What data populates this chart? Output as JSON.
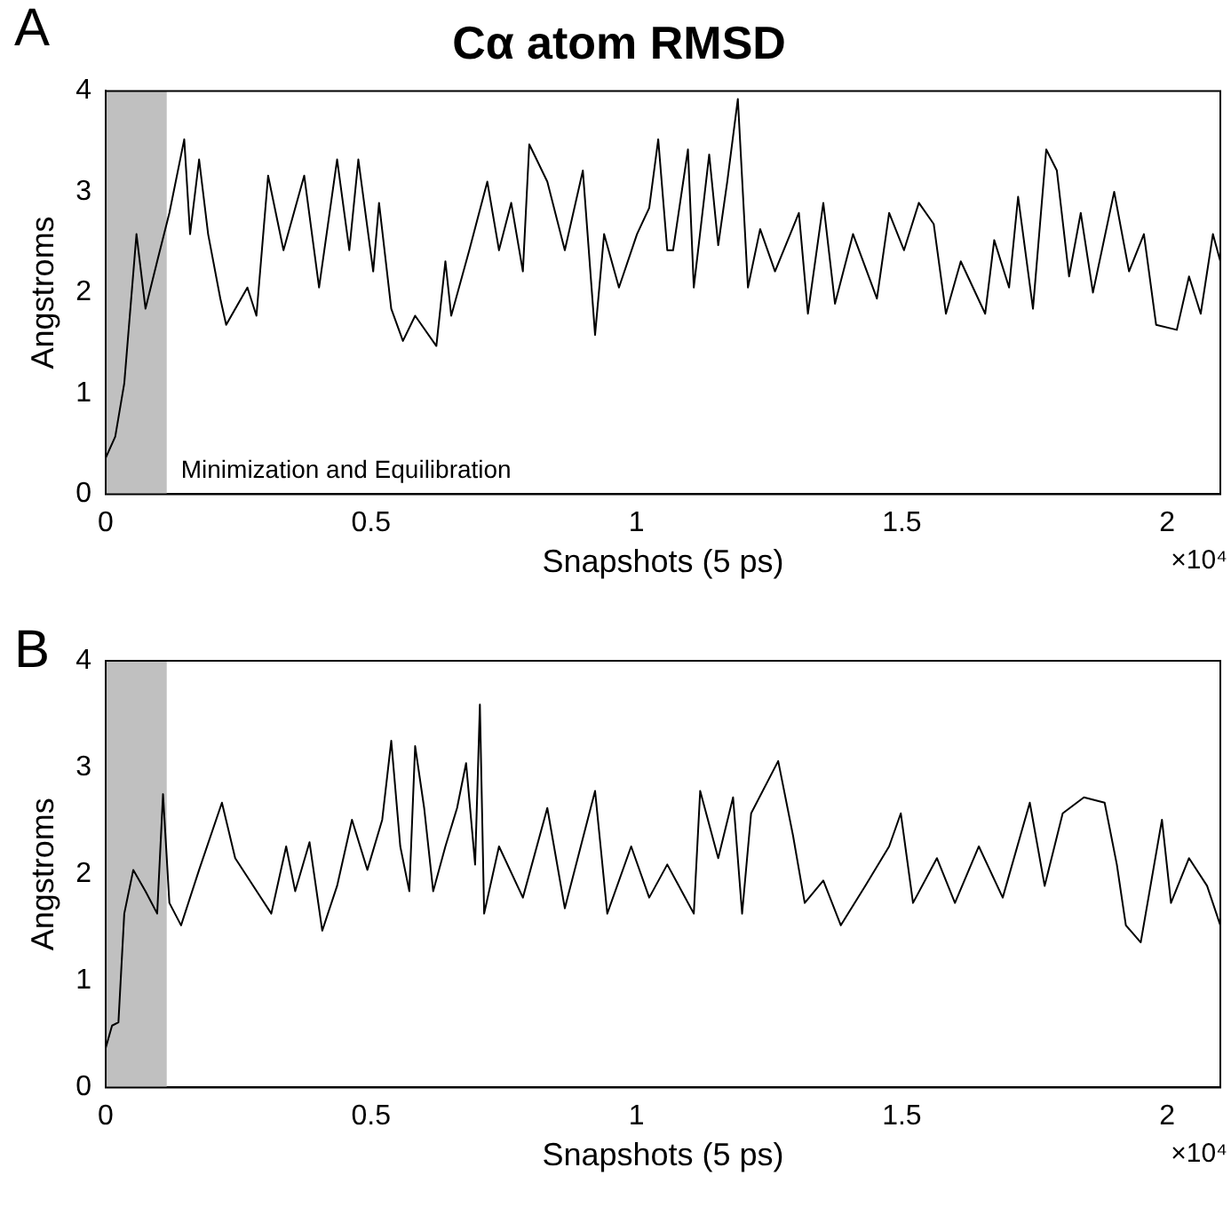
{
  "chart_data": [
    {
      "type": "line",
      "title": "Cα atom RMSD",
      "xlabel": "Snapshots (5 ps)",
      "ylabel": "Angstroms",
      "annotations": [
        "A",
        "×10⁴"
      ],
      "xlim": [
        0,
        2.1
      ],
      "ylim": [
        0,
        4
      ],
      "xticks": [
        0,
        0.5,
        1,
        1.5,
        2
      ],
      "yticks": [
        0,
        1,
        2,
        3,
        4
      ],
      "bands": [
        {
          "axis": "x",
          "from": 0,
          "to": 0.115,
          "label": "Minimization and Equilibration",
          "color": "#c0c0c0"
        }
      ],
      "x": [
        0,
        0.018,
        0.035,
        0.058,
        0.075,
        0.097,
        0.12,
        0.148,
        0.159,
        0.176,
        0.193,
        0.216,
        0.227,
        0.267,
        0.284,
        0.306,
        0.335,
        0.374,
        0.402,
        0.436,
        0.459,
        0.476,
        0.504,
        0.515,
        0.538,
        0.56,
        0.583,
        0.623,
        0.64,
        0.651,
        0.685,
        0.719,
        0.741,
        0.764,
        0.786,
        0.798,
        0.832,
        0.865,
        0.899,
        0.922,
        0.939,
        0.967,
        1.001,
        1.024,
        1.041,
        1.058,
        1.069,
        1.097,
        1.108,
        1.137,
        1.154,
        1.171,
        1.191,
        1.21,
        1.233,
        1.261,
        1.306,
        1.323,
        1.352,
        1.374,
        1.408,
        1.453,
        1.476,
        1.504,
        1.532,
        1.56,
        1.583,
        1.611,
        1.657,
        1.674,
        1.702,
        1.719,
        1.747,
        1.772,
        1.792,
        1.815,
        1.837,
        1.86,
        1.9,
        1.928,
        1.956,
        1.979,
        2.018,
        2.041,
        2.063,
        2.086,
        2.1
      ],
      "series": [
        {
          "color": "#000000",
          "values": [
            0.36,
            0.57,
            1.1,
            2.58,
            1.84,
            2.31,
            2.79,
            3.52,
            2.58,
            3.32,
            2.58,
            1.94,
            1.68,
            2.05,
            1.77,
            3.16,
            2.42,
            3.16,
            2.05,
            3.32,
            2.42,
            3.32,
            2.21,
            2.89,
            1.84,
            1.52,
            1.77,
            1.47,
            2.31,
            1.77,
            2.42,
            3.1,
            2.42,
            2.89,
            2.21,
            3.47,
            3.1,
            2.42,
            3.21,
            1.58,
            2.58,
            2.05,
            2.58,
            2.84,
            3.52,
            2.42,
            2.42,
            3.42,
            2.05,
            3.37,
            2.47,
            3.1,
            3.92,
            2.05,
            2.63,
            2.21,
            2.79,
            1.79,
            2.89,
            1.89,
            2.58,
            1.94,
            2.79,
            2.42,
            2.89,
            2.68,
            1.79,
            2.31,
            1.79,
            2.52,
            2.05,
            2.95,
            1.84,
            3.42,
            3.21,
            2.16,
            2.79,
            2.0,
            3.0,
            2.21,
            2.58,
            1.68,
            1.63,
            2.16,
            1.79,
            2.58,
            2.31
          ]
        }
      ]
    },
    {
      "type": "line",
      "xlabel": "Snapshots (5 ps)",
      "ylabel": "Angstroms",
      "annotations": [
        "B",
        "×10⁴"
      ],
      "xlim": [
        0,
        2.1
      ],
      "ylim": [
        0,
        4
      ],
      "xticks": [
        0,
        0.5,
        1,
        1.5,
        2
      ],
      "yticks": [
        0,
        1,
        2,
        3,
        4
      ],
      "bands": [
        {
          "axis": "x",
          "from": 0,
          "to": 0.115,
          "color": "#c0c0c0"
        }
      ],
      "x": [
        0,
        0.012,
        0.024,
        0.035,
        0.052,
        0.075,
        0.097,
        0.108,
        0.12,
        0.142,
        0.176,
        0.219,
        0.244,
        0.312,
        0.34,
        0.357,
        0.384,
        0.408,
        0.436,
        0.464,
        0.493,
        0.521,
        0.538,
        0.555,
        0.572,
        0.583,
        0.6,
        0.617,
        0.64,
        0.662,
        0.679,
        0.696,
        0.705,
        0.713,
        0.741,
        0.786,
        0.832,
        0.865,
        0.922,
        0.945,
        0.99,
        1.024,
        1.058,
        1.108,
        1.12,
        1.154,
        1.182,
        1.199,
        1.216,
        1.267,
        1.295,
        1.317,
        1.352,
        1.385,
        1.431,
        1.476,
        1.498,
        1.521,
        1.566,
        1.6,
        1.645,
        1.69,
        1.741,
        1.769,
        1.803,
        1.843,
        1.882,
        1.905,
        1.922,
        1.95,
        1.99,
        2.007,
        2.041,
        2.075,
        2.1
      ],
      "series": [
        {
          "color": "#000000",
          "values": [
            0.37,
            0.58,
            0.61,
            1.63,
            2.04,
            1.84,
            1.63,
            2.75,
            1.73,
            1.52,
            2.04,
            2.67,
            2.15,
            1.63,
            2.26,
            1.84,
            2.3,
            1.47,
            1.89,
            2.51,
            2.04,
            2.51,
            3.25,
            2.26,
            1.84,
            3.2,
            2.62,
            1.84,
            2.26,
            2.62,
            3.04,
            2.09,
            3.59,
            1.63,
            2.26,
            1.78,
            2.62,
            1.68,
            2.78,
            1.63,
            2.26,
            1.78,
            2.09,
            1.63,
            2.78,
            2.15,
            2.72,
            1.63,
            2.57,
            3.06,
            2.36,
            1.73,
            1.94,
            1.52,
            1.89,
            2.26,
            2.57,
            1.73,
            2.15,
            1.73,
            2.26,
            1.78,
            2.67,
            1.89,
            2.57,
            2.72,
            2.67,
            2.09,
            1.52,
            1.36,
            2.51,
            1.73,
            2.15,
            1.89,
            1.52
          ]
        }
      ]
    }
  ]
}
